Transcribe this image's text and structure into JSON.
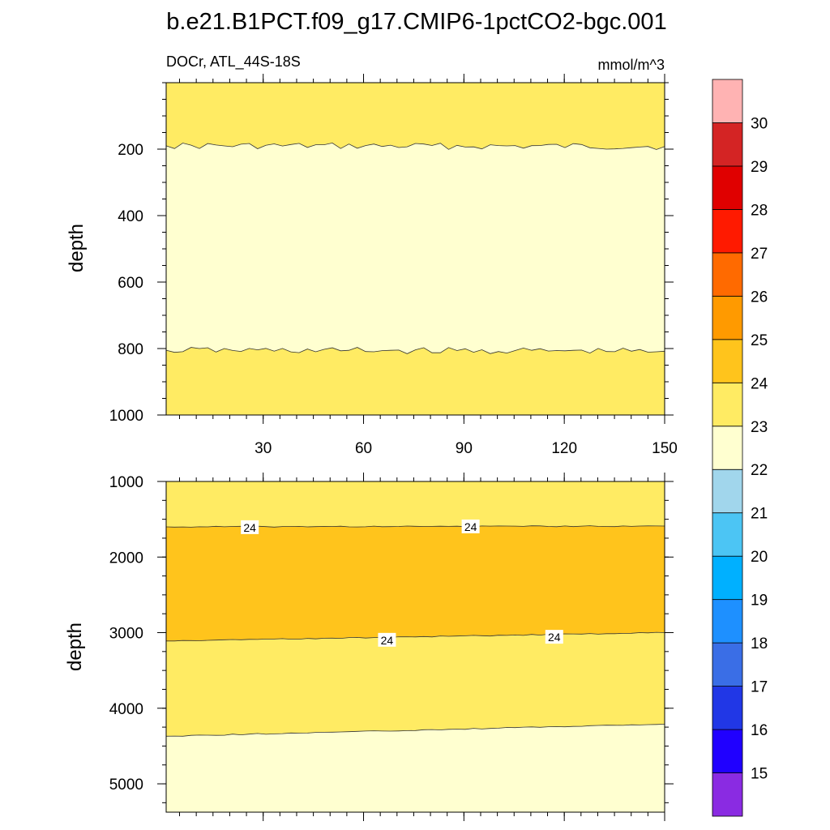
{
  "title": "b.e21.B1PCT.f09_g17.CMIP6-1pctCO2-bgc.001",
  "colorbar": {
    "labels": [
      "15",
      "16",
      "17",
      "18",
      "19",
      "20",
      "21",
      "22",
      "23",
      "24",
      "25",
      "26",
      "27",
      "28",
      "29",
      "30"
    ],
    "colors": [
      "#8a2be2",
      "#2000ff",
      "#2137e6",
      "#3a6ee6",
      "#1e90ff",
      "#00b0ff",
      "#4cc5f4",
      "#a1d6ec",
      "#ffffd0",
      "#ffeb63",
      "#ffc41c",
      "#ff9a00",
      "#ff6a00",
      "#ff1a00",
      "#e00000",
      "#d42424",
      "#ffb3b3"
    ]
  },
  "chart_data": [
    {
      "type": "contour",
      "panel": "top",
      "left_label": "DOCr, ATL_44S-18S",
      "right_label": "mmol/m^3",
      "ylabel": "depth",
      "x_ticks": [
        "30",
        "60",
        "90",
        "120",
        "150"
      ],
      "y_ticks": [
        "200",
        "400",
        "600",
        "800",
        "1000"
      ],
      "xlim": [
        1,
        150
      ],
      "ylim": [
        1000,
        0
      ],
      "regions": [
        {
          "range": "23-24",
          "color": "#ffeb63",
          "depth_from": 0,
          "depth_to": 190
        },
        {
          "range": "22-23",
          "color": "#ffffd0",
          "depth_from": 190,
          "depth_to": 810
        },
        {
          "range": "23-24",
          "color": "#ffeb63",
          "depth_from": 810,
          "depth_to": 1000
        }
      ],
      "contours": [
        {
          "level": 23,
          "x": [
            1,
            150
          ],
          "depth": [
            190,
            192
          ]
        },
        {
          "level": 23,
          "x": [
            1,
            150
          ],
          "depth": [
            805,
            808
          ]
        }
      ]
    },
    {
      "type": "contour",
      "panel": "bottom",
      "ylabel": "depth",
      "x_ticks": [
        "30",
        "60",
        "90",
        "120",
        "150"
      ],
      "y_ticks": [
        "1000",
        "2000",
        "3000",
        "4000",
        "5000"
      ],
      "xlim": [
        1,
        150
      ],
      "ylim": [
        5375,
        1000
      ],
      "regions": [
        {
          "range": "23-24",
          "color": "#ffeb63",
          "depth_from": 1000,
          "depth_to": 1600
        },
        {
          "range": "24-25",
          "color": "#ffc41c",
          "depth_from": 1600,
          "depth_to": 3100
        },
        {
          "range": "23-24",
          "color": "#ffeb63",
          "depth_from": 3100,
          "depth_to": 4350
        },
        {
          "range": "22-23",
          "color": "#ffffd0",
          "depth_from": 4350,
          "depth_to": 5375
        }
      ],
      "contours": [
        {
          "level": 24,
          "x": [
            1,
            150
          ],
          "depth": [
            1600,
            1590
          ]
        },
        {
          "level": 24,
          "x": [
            1,
            150
          ],
          "depth": [
            3110,
            3000
          ]
        },
        {
          "level": 23,
          "x": [
            1,
            150
          ],
          "depth": [
            4370,
            4210
          ]
        }
      ],
      "contour_labels": [
        {
          "text": "24",
          "x": 26,
          "depth": 1610
        },
        {
          "text": "24",
          "x": 92,
          "depth": 1600
        },
        {
          "text": "24",
          "x": 67,
          "depth": 3100
        },
        {
          "text": "24",
          "x": 117,
          "depth": 3060
        }
      ]
    }
  ]
}
